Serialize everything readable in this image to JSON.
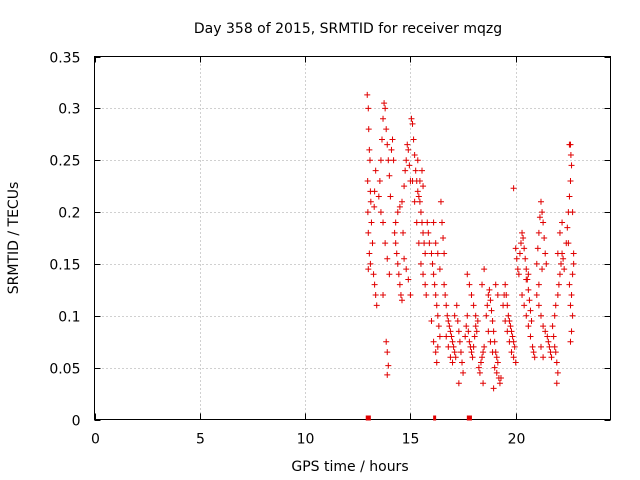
{
  "chart_data": {
    "type": "scatter",
    "title": "Day 358 of 2015, SRMTID for receiver mqzg",
    "xlabel": "GPS time / hours",
    "ylabel": "SRMTID / TECUs",
    "xlim": [
      0,
      24.5
    ],
    "ylim": [
      0,
      0.35
    ],
    "xticks": [
      0,
      5,
      10,
      15,
      20
    ],
    "xtick_labels": [
      "0",
      "5",
      "10",
      "15",
      "20"
    ],
    "yticks": [
      0,
      0.05,
      0.1,
      0.15,
      0.2,
      0.25,
      0.3,
      0.35
    ],
    "ytick_labels": [
      "0",
      "0.05",
      "0.1",
      "0.15",
      "0.2",
      "0.25",
      "0.3",
      "0.35"
    ],
    "grid": true,
    "marker": "+",
    "color": "#e00000",
    "series": [
      {
        "name": "SRMTID",
        "points": [
          [
            12.95,
            0.313
          ],
          [
            13.0,
            0.3
          ],
          [
            13.02,
            0.28
          ],
          [
            13.05,
            0.26
          ],
          [
            13.08,
            0.25
          ],
          [
            12.97,
            0.23
          ],
          [
            13.1,
            0.22
          ],
          [
            13.12,
            0.21
          ],
          [
            12.98,
            0.2
          ],
          [
            13.15,
            0.19
          ],
          [
            13.0,
            0.18
          ],
          [
            13.2,
            0.17
          ],
          [
            13.05,
            0.16
          ],
          [
            13.1,
            0.15
          ],
          [
            13.0,
            0.145
          ],
          [
            13.25,
            0.14
          ],
          [
            13.3,
            0.13
          ],
          [
            13.35,
            0.12
          ],
          [
            13.4,
            0.11
          ],
          [
            13.3,
            0.22
          ],
          [
            13.35,
            0.24
          ],
          [
            13.28,
            0.205
          ],
          [
            13.5,
            0.215
          ],
          [
            13.55,
            0.23
          ],
          [
            13.6,
            0.25
          ],
          [
            13.65,
            0.27
          ],
          [
            13.7,
            0.29
          ],
          [
            13.75,
            0.305
          ],
          [
            13.8,
            0.3
          ],
          [
            13.85,
            0.28
          ],
          [
            13.9,
            0.265
          ],
          [
            13.95,
            0.25
          ],
          [
            14.0,
            0.235
          ],
          [
            13.6,
            0.2
          ],
          [
            13.7,
            0.19
          ],
          [
            13.8,
            0.17
          ],
          [
            13.9,
            0.155
          ],
          [
            14.0,
            0.14
          ],
          [
            13.85,
            0.075
          ],
          [
            13.9,
            0.065
          ],
          [
            13.95,
            0.052
          ],
          [
            13.9,
            0.043
          ],
          [
            13.7,
            0.12
          ],
          [
            14.05,
            0.215
          ],
          [
            14.1,
            0.26
          ],
          [
            14.15,
            0.27
          ],
          [
            14.2,
            0.25
          ],
          [
            14.25,
            0.18
          ],
          [
            14.3,
            0.17
          ],
          [
            14.35,
            0.16
          ],
          [
            14.4,
            0.15
          ],
          [
            14.45,
            0.14
          ],
          [
            14.5,
            0.13
          ],
          [
            14.55,
            0.12
          ],
          [
            14.6,
            0.115
          ],
          [
            14.3,
            0.19
          ],
          [
            14.4,
            0.2
          ],
          [
            14.5,
            0.205
          ],
          [
            14.6,
            0.21
          ],
          [
            14.7,
            0.225
          ],
          [
            14.75,
            0.24
          ],
          [
            14.8,
            0.25
          ],
          [
            14.85,
            0.265
          ],
          [
            14.9,
            0.26
          ],
          [
            14.95,
            0.245
          ],
          [
            15.0,
            0.23
          ],
          [
            14.65,
            0.18
          ],
          [
            14.7,
            0.155
          ],
          [
            14.8,
            0.145
          ],
          [
            14.9,
            0.135
          ],
          [
            15.0,
            0.12
          ],
          [
            15.05,
            0.29
          ],
          [
            15.1,
            0.285
          ],
          [
            15.15,
            0.27
          ],
          [
            15.2,
            0.255
          ],
          [
            15.25,
            0.24
          ],
          [
            15.3,
            0.23
          ],
          [
            15.35,
            0.22
          ],
          [
            15.4,
            0.215
          ],
          [
            15.45,
            0.21
          ],
          [
            15.5,
            0.2
          ],
          [
            15.55,
            0.19
          ],
          [
            15.6,
            0.18
          ],
          [
            15.65,
            0.17
          ],
          [
            15.7,
            0.16
          ],
          [
            15.1,
            0.23
          ],
          [
            15.2,
            0.21
          ],
          [
            15.3,
            0.19
          ],
          [
            15.4,
            0.17
          ],
          [
            15.5,
            0.15
          ],
          [
            15.6,
            0.14
          ],
          [
            15.7,
            0.13
          ],
          [
            15.75,
            0.12
          ],
          [
            15.35,
            0.25
          ],
          [
            15.45,
            0.23
          ],
          [
            15.55,
            0.24
          ],
          [
            15.6,
            0.225
          ],
          [
            15.8,
            0.19
          ],
          [
            15.85,
            0.18
          ],
          [
            15.9,
            0.17
          ],
          [
            16.0,
            0.16
          ],
          [
            16.05,
            0.15
          ],
          [
            16.1,
            0.14
          ],
          [
            16.15,
            0.13
          ],
          [
            16.2,
            0.12
          ],
          [
            16.25,
            0.11
          ],
          [
            16.3,
            0.1
          ],
          [
            16.35,
            0.09
          ],
          [
            16.4,
            0.08
          ],
          [
            16.1,
            0.19
          ],
          [
            16.2,
            0.17
          ],
          [
            16.3,
            0.16
          ],
          [
            16.4,
            0.145
          ],
          [
            16.45,
            0.21
          ],
          [
            16.5,
            0.19
          ],
          [
            16.55,
            0.175
          ],
          [
            16.6,
            0.16
          ],
          [
            16.0,
            0.095
          ],
          [
            16.1,
            0.075
          ],
          [
            16.2,
            0.065
          ],
          [
            16.25,
            0.055
          ],
          [
            16.3,
            0.07
          ],
          [
            16.6,
            0.13
          ],
          [
            16.65,
            0.12
          ],
          [
            16.7,
            0.11
          ],
          [
            16.75,
            0.1
          ],
          [
            16.8,
            0.095
          ],
          [
            16.85,
            0.09
          ],
          [
            16.9,
            0.085
          ],
          [
            16.95,
            0.08
          ],
          [
            17.0,
            0.075
          ],
          [
            17.05,
            0.07
          ],
          [
            17.1,
            0.065
          ],
          [
            17.15,
            0.06
          ],
          [
            16.7,
            0.08
          ],
          [
            16.8,
            0.07
          ],
          [
            16.9,
            0.06
          ],
          [
            17.0,
            0.055
          ],
          [
            17.1,
            0.1
          ],
          [
            17.2,
            0.11
          ],
          [
            17.25,
            0.095
          ],
          [
            17.3,
            0.085
          ],
          [
            17.35,
            0.075
          ],
          [
            17.4,
            0.065
          ],
          [
            17.45,
            0.055
          ],
          [
            17.5,
            0.045
          ],
          [
            17.3,
            0.035
          ],
          [
            17.6,
            0.08
          ],
          [
            17.65,
            0.09
          ],
          [
            17.7,
            0.1
          ],
          [
            17.75,
            0.085
          ],
          [
            17.8,
            0.075
          ],
          [
            17.85,
            0.07
          ],
          [
            17.9,
            0.065
          ],
          [
            17.95,
            0.06
          ],
          [
            18.0,
            0.07
          ],
          [
            18.05,
            0.08
          ],
          [
            18.1,
            0.09
          ],
          [
            18.15,
            0.085
          ],
          [
            17.7,
            0.14
          ],
          [
            17.8,
            0.13
          ],
          [
            17.9,
            0.12
          ],
          [
            18.0,
            0.11
          ],
          [
            18.1,
            0.1
          ],
          [
            18.2,
            0.095
          ],
          [
            18.25,
            0.05
          ],
          [
            18.3,
            0.045
          ],
          [
            18.35,
            0.055
          ],
          [
            18.4,
            0.06
          ],
          [
            18.45,
            0.065
          ],
          [
            18.5,
            0.07
          ],
          [
            18.4,
            0.13
          ],
          [
            18.5,
            0.145
          ],
          [
            18.45,
            0.035
          ],
          [
            18.6,
            0.1
          ],
          [
            18.65,
            0.11
          ],
          [
            18.7,
            0.12
          ],
          [
            18.75,
            0.125
          ],
          [
            18.8,
            0.115
          ],
          [
            18.85,
            0.105
          ],
          [
            18.9,
            0.095
          ],
          [
            18.95,
            0.085
          ],
          [
            19.0,
            0.075
          ],
          [
            19.05,
            0.065
          ],
          [
            19.1,
            0.06
          ],
          [
            19.15,
            0.055
          ],
          [
            18.7,
            0.085
          ],
          [
            18.8,
            0.075
          ],
          [
            18.9,
            0.065
          ],
          [
            19.0,
            0.05
          ],
          [
            19.1,
            0.045
          ],
          [
            19.2,
            0.04
          ],
          [
            19.25,
            0.035
          ],
          [
            19.3,
            0.04
          ],
          [
            18.95,
            0.03
          ],
          [
            19.05,
            0.13
          ],
          [
            19.15,
            0.12
          ],
          [
            19.4,
            0.11
          ],
          [
            19.45,
            0.12
          ],
          [
            19.5,
            0.13
          ],
          [
            19.55,
            0.12
          ],
          [
            19.6,
            0.11
          ],
          [
            19.65,
            0.1
          ],
          [
            19.7,
            0.095
          ],
          [
            19.75,
            0.09
          ],
          [
            19.8,
            0.085
          ],
          [
            19.85,
            0.08
          ],
          [
            19.9,
            0.075
          ],
          [
            19.95,
            0.07
          ],
          [
            19.5,
            0.095
          ],
          [
            19.6,
            0.085
          ],
          [
            19.7,
            0.075
          ],
          [
            19.8,
            0.065
          ],
          [
            19.9,
            0.06
          ],
          [
            20.0,
            0.055
          ],
          [
            19.9,
            0.223
          ],
          [
            20.0,
            0.165
          ],
          [
            20.05,
            0.155
          ],
          [
            20.1,
            0.145
          ],
          [
            20.15,
            0.14
          ],
          [
            20.2,
            0.16
          ],
          [
            20.25,
            0.17
          ],
          [
            20.3,
            0.18
          ],
          [
            20.35,
            0.175
          ],
          [
            20.4,
            0.165
          ],
          [
            20.45,
            0.155
          ],
          [
            20.5,
            0.145
          ],
          [
            20.55,
            0.135
          ],
          [
            20.6,
            0.125
          ],
          [
            20.65,
            0.115
          ],
          [
            20.7,
            0.105
          ],
          [
            20.75,
            0.095
          ],
          [
            20.3,
            0.12
          ],
          [
            20.4,
            0.11
          ],
          [
            20.5,
            0.1
          ],
          [
            20.6,
            0.09
          ],
          [
            20.7,
            0.08
          ],
          [
            20.8,
            0.07
          ],
          [
            20.85,
            0.065
          ],
          [
            20.9,
            0.06
          ],
          [
            20.5,
            0.135
          ],
          [
            20.6,
            0.14
          ],
          [
            21.0,
            0.15
          ],
          [
            21.05,
            0.165
          ],
          [
            21.1,
            0.18
          ],
          [
            21.15,
            0.195
          ],
          [
            21.2,
            0.21
          ],
          [
            21.25,
            0.2
          ],
          [
            21.3,
            0.19
          ],
          [
            21.35,
            0.175
          ],
          [
            21.4,
            0.16
          ],
          [
            21.45,
            0.15
          ],
          [
            21.0,
            0.12
          ],
          [
            21.1,
            0.11
          ],
          [
            21.2,
            0.1
          ],
          [
            21.3,
            0.09
          ],
          [
            21.4,
            0.085
          ],
          [
            21.5,
            0.08
          ],
          [
            21.55,
            0.075
          ],
          [
            21.6,
            0.07
          ],
          [
            21.65,
            0.065
          ],
          [
            21.7,
            0.06
          ],
          [
            21.2,
            0.07
          ],
          [
            21.3,
            0.06
          ],
          [
            21.1,
            0.13
          ],
          [
            21.25,
            0.145
          ],
          [
            21.75,
            0.09
          ],
          [
            21.8,
            0.08
          ],
          [
            21.85,
            0.07
          ],
          [
            21.9,
            0.065
          ],
          [
            21.95,
            0.055
          ],
          [
            22.0,
            0.045
          ],
          [
            21.95,
            0.035
          ],
          [
            21.85,
            0.1
          ],
          [
            21.9,
            0.11
          ],
          [
            22.0,
            0.12
          ],
          [
            22.05,
            0.13
          ],
          [
            22.1,
            0.14
          ],
          [
            22.15,
            0.15
          ],
          [
            22.2,
            0.16
          ],
          [
            22.25,
            0.155
          ],
          [
            22.3,
            0.145
          ],
          [
            22.0,
            0.16
          ],
          [
            22.1,
            0.18
          ],
          [
            22.2,
            0.19
          ],
          [
            22.4,
            0.17
          ],
          [
            22.45,
            0.185
          ],
          [
            22.5,
            0.2
          ],
          [
            22.55,
            0.215
          ],
          [
            22.6,
            0.23
          ],
          [
            22.65,
            0.245
          ],
          [
            22.55,
            0.265
          ],
          [
            22.6,
            0.265
          ],
          [
            22.62,
            0.255
          ],
          [
            22.7,
            0.2
          ],
          [
            22.75,
            0.16
          ],
          [
            22.7,
            0.14
          ],
          [
            22.65,
            0.12
          ],
          [
            22.6,
            0.11
          ],
          [
            22.7,
            0.1
          ],
          [
            22.65,
            0.085
          ],
          [
            22.6,
            0.075
          ],
          [
            22.55,
            0.13
          ],
          [
            22.75,
            0.15
          ],
          [
            22.5,
            0.17
          ]
        ]
      }
    ],
    "x_axis_rug": [
      12.95,
      13.05,
      16.15,
      17.75,
      17.85
    ]
  }
}
